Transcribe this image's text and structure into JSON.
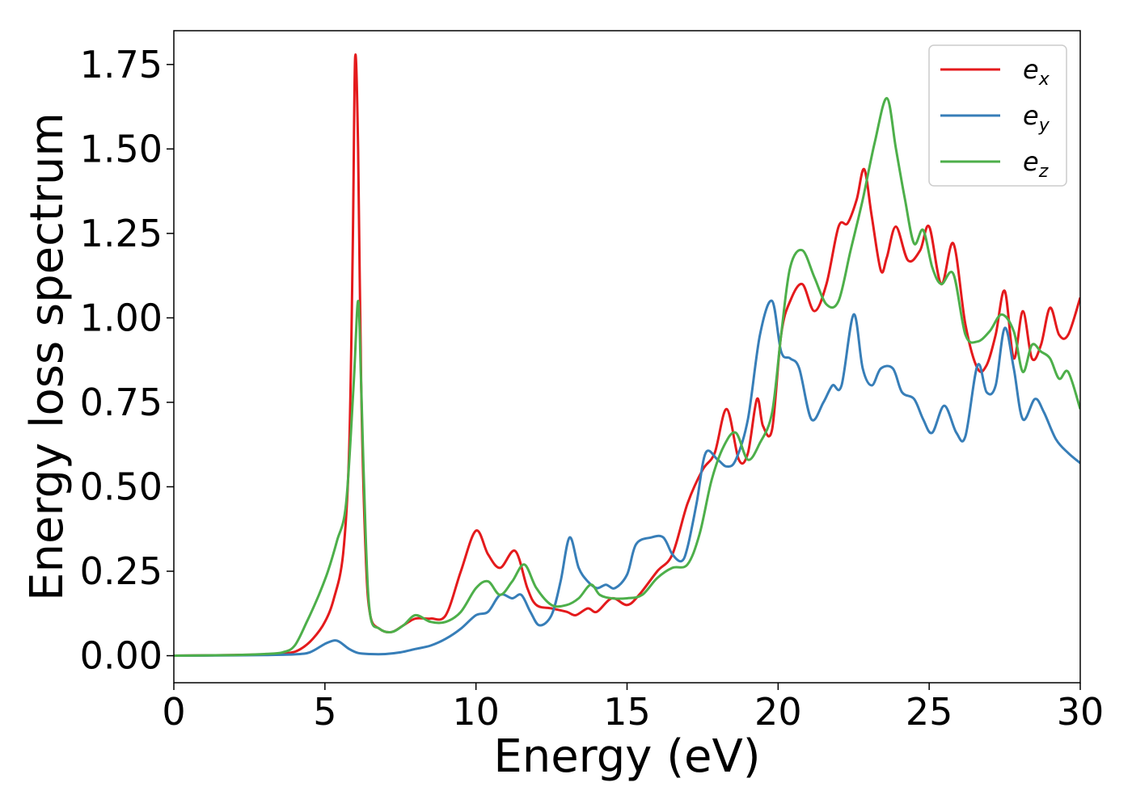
{
  "chart_data": {
    "type": "line",
    "title": "",
    "xlabel": "Energy (eV)",
    "ylabel": "Energy loss spectrum",
    "xlim": [
      0,
      30
    ],
    "ylim": [
      -0.08,
      1.85
    ],
    "xticks": [
      0,
      5,
      10,
      15,
      20,
      25,
      30
    ],
    "xtick_labels": [
      "0",
      "5",
      "10",
      "15",
      "20",
      "25",
      "30"
    ],
    "yticks": [
      0.0,
      0.25,
      0.5,
      0.75,
      1.0,
      1.25,
      1.5,
      1.75
    ],
    "ytick_labels": [
      "0.00",
      "0.25",
      "0.50",
      "0.75",
      "1.00",
      "1.25",
      "1.50",
      "1.75"
    ],
    "grid": false,
    "legend_position": "top-right",
    "series": [
      {
        "name": "e_x",
        "legend_base": "e",
        "legend_sub": "x",
        "color": "#e41a1c",
        "x": [
          0,
          2,
          3,
          3.8,
          4.2,
          4.6,
          5.0,
          5.3,
          5.6,
          5.8,
          5.92,
          6.0,
          6.1,
          6.2,
          6.35,
          6.5,
          6.8,
          7.2,
          7.6,
          8.0,
          8.5,
          9.0,
          9.5,
          10.0,
          10.4,
          10.8,
          11.3,
          11.7,
          12.0,
          12.5,
          13.0,
          13.3,
          13.7,
          14.0,
          14.5,
          15.0,
          15.4,
          16.0,
          16.5,
          17.0,
          17.5,
          17.9,
          18.3,
          18.7,
          19.0,
          19.3,
          19.5,
          19.8,
          20.1,
          20.4,
          20.8,
          21.2,
          21.6,
          22.0,
          22.3,
          22.6,
          22.85,
          23.1,
          23.4,
          23.6,
          23.9,
          24.3,
          24.7,
          25.0,
          25.4,
          25.8,
          26.2,
          26.6,
          26.9,
          27.2,
          27.5,
          27.8,
          28.1,
          28.4,
          28.7,
          29.0,
          29.3,
          29.6,
          30.0
        ],
        "y": [
          0.0,
          0.002,
          0.004,
          0.008,
          0.02,
          0.05,
          0.1,
          0.17,
          0.3,
          0.6,
          1.2,
          1.77,
          1.5,
          0.8,
          0.3,
          0.12,
          0.08,
          0.07,
          0.09,
          0.11,
          0.11,
          0.12,
          0.25,
          0.37,
          0.3,
          0.26,
          0.31,
          0.2,
          0.15,
          0.14,
          0.13,
          0.12,
          0.14,
          0.13,
          0.17,
          0.15,
          0.18,
          0.25,
          0.3,
          0.45,
          0.55,
          0.6,
          0.73,
          0.58,
          0.6,
          0.76,
          0.68,
          0.67,
          0.95,
          1.05,
          1.1,
          1.02,
          1.1,
          1.27,
          1.28,
          1.35,
          1.44,
          1.3,
          1.14,
          1.18,
          1.27,
          1.17,
          1.2,
          1.27,
          1.1,
          1.22,
          0.98,
          0.85,
          0.86,
          0.95,
          1.08,
          0.88,
          1.02,
          0.88,
          0.92,
          1.03,
          0.95,
          0.95,
          1.06
        ]
      },
      {
        "name": "e_y",
        "legend_base": "e",
        "legend_sub": "y",
        "color": "#377eb8",
        "x": [
          0,
          2,
          3,
          4,
          4.5,
          5.0,
          5.3,
          5.5,
          5.8,
          6.1,
          6.5,
          7.0,
          7.5,
          8.0,
          8.5,
          9.0,
          9.5,
          10.0,
          10.4,
          10.8,
          11.2,
          11.5,
          11.8,
          12.1,
          12.5,
          12.8,
          13.1,
          13.4,
          13.7,
          14.0,
          14.3,
          14.6,
          15.0,
          15.3,
          15.8,
          16.2,
          16.5,
          16.8,
          17.0,
          17.3,
          17.6,
          18.0,
          18.3,
          18.6,
          19.0,
          19.4,
          19.8,
          20.1,
          20.4,
          20.7,
          21.1,
          21.5,
          21.8,
          22.1,
          22.5,
          22.8,
          23.1,
          23.4,
          23.8,
          24.1,
          24.5,
          24.8,
          25.1,
          25.5,
          25.9,
          26.2,
          26.6,
          26.9,
          27.2,
          27.5,
          27.8,
          28.1,
          28.5,
          28.8,
          29.2,
          29.6,
          30.0
        ],
        "y": [
          0.0,
          0.001,
          0.002,
          0.004,
          0.01,
          0.035,
          0.045,
          0.04,
          0.02,
          0.008,
          0.005,
          0.005,
          0.01,
          0.02,
          0.03,
          0.05,
          0.08,
          0.12,
          0.13,
          0.18,
          0.17,
          0.18,
          0.13,
          0.09,
          0.12,
          0.22,
          0.35,
          0.26,
          0.22,
          0.2,
          0.21,
          0.2,
          0.24,
          0.33,
          0.35,
          0.35,
          0.3,
          0.28,
          0.32,
          0.45,
          0.6,
          0.58,
          0.56,
          0.58,
          0.7,
          0.95,
          1.05,
          0.9,
          0.88,
          0.85,
          0.7,
          0.75,
          0.8,
          0.8,
          1.01,
          0.85,
          0.8,
          0.85,
          0.85,
          0.78,
          0.76,
          0.7,
          0.66,
          0.74,
          0.66,
          0.65,
          0.86,
          0.78,
          0.8,
          0.97,
          0.85,
          0.7,
          0.76,
          0.72,
          0.64,
          0.6,
          0.57
        ]
      },
      {
        "name": "e_z",
        "legend_base": "e",
        "legend_sub": "z",
        "color": "#4daf4a",
        "x": [
          0,
          2,
          3,
          3.6,
          4.0,
          4.4,
          4.8,
          5.1,
          5.4,
          5.7,
          5.95,
          6.1,
          6.2,
          6.35,
          6.5,
          6.8,
          7.2,
          7.6,
          8.0,
          8.5,
          9.0,
          9.5,
          10.0,
          10.4,
          10.8,
          11.2,
          11.6,
          12.0,
          12.5,
          13.0,
          13.4,
          13.8,
          14.1,
          14.5,
          15.0,
          15.5,
          16.0,
          16.5,
          17.0,
          17.4,
          17.8,
          18.2,
          18.6,
          19.0,
          19.4,
          19.8,
          20.1,
          20.4,
          20.8,
          21.2,
          21.6,
          22.0,
          22.4,
          22.8,
          23.2,
          23.6,
          23.9,
          24.2,
          24.5,
          24.8,
          25.1,
          25.4,
          25.8,
          26.2,
          26.6,
          27.0,
          27.4,
          27.8,
          28.1,
          28.4,
          28.7,
          29.0,
          29.3,
          29.6,
          30.0
        ],
        "y": [
          0.0,
          0.002,
          0.005,
          0.01,
          0.03,
          0.1,
          0.18,
          0.25,
          0.34,
          0.45,
          0.8,
          1.05,
          0.8,
          0.35,
          0.12,
          0.08,
          0.07,
          0.09,
          0.12,
          0.1,
          0.1,
          0.13,
          0.2,
          0.22,
          0.18,
          0.22,
          0.27,
          0.2,
          0.15,
          0.15,
          0.17,
          0.21,
          0.18,
          0.17,
          0.17,
          0.18,
          0.23,
          0.26,
          0.27,
          0.36,
          0.52,
          0.62,
          0.66,
          0.58,
          0.63,
          0.72,
          0.95,
          1.15,
          1.2,
          1.12,
          1.04,
          1.05,
          1.2,
          1.35,
          1.52,
          1.65,
          1.5,
          1.35,
          1.22,
          1.26,
          1.15,
          1.1,
          1.13,
          0.95,
          0.93,
          0.96,
          1.01,
          0.96,
          0.84,
          0.92,
          0.9,
          0.88,
          0.82,
          0.84,
          0.73
        ]
      }
    ]
  }
}
